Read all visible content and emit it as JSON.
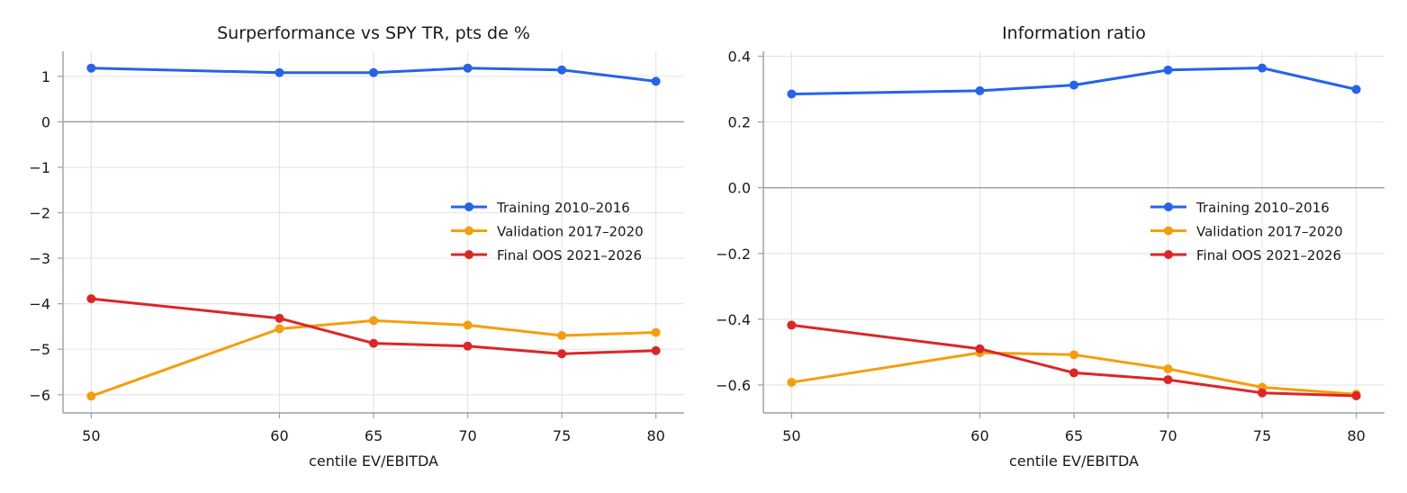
{
  "chart_data": [
    {
      "type": "line",
      "title": "Surperformance vs SPY TR, pts de %",
      "xlabel": "centile EV/EBITDA",
      "ylabel": "",
      "x": [
        50,
        60,
        65,
        70,
        75,
        80
      ],
      "xlim": [
        48.5,
        81.5
      ],
      "ylim": [
        -6.4,
        1.55
      ],
      "xticks": [
        "50",
        "60",
        "65",
        "70",
        "75",
        "80"
      ],
      "yticks": [
        1,
        0,
        -1,
        -2,
        -3,
        -4,
        -5,
        -6
      ],
      "yticklabels": [
        "1",
        "0",
        "−1",
        "−2",
        "−3",
        "−4",
        "−5",
        "−6"
      ],
      "grid": true,
      "zero_line": true,
      "legend_position": "center-right",
      "series": [
        {
          "name": "Training 2010–2016",
          "color": "#2563eb",
          "values": [
            1.18,
            1.08,
            1.08,
            1.18,
            1.14,
            0.89
          ]
        },
        {
          "name": "Validation 2017–2020",
          "color": "#f59e0b",
          "values": [
            -6.03,
            -4.55,
            -4.37,
            -4.47,
            -4.7,
            -4.63
          ]
        },
        {
          "name": "Final OOS 2021–2026",
          "color": "#dc2626",
          "values": [
            -3.89,
            -4.32,
            -4.87,
            -4.93,
            -5.1,
            -5.03
          ]
        }
      ]
    },
    {
      "type": "line",
      "title": "Information ratio",
      "xlabel": "centile EV/EBITDA",
      "ylabel": "",
      "x": [
        50,
        60,
        65,
        70,
        75,
        80
      ],
      "xlim": [
        48.5,
        81.5
      ],
      "ylim": [
        -0.685,
        0.415
      ],
      "xticks": [
        "50",
        "60",
        "65",
        "70",
        "75",
        "80"
      ],
      "yticks": [
        0.4,
        0.2,
        0.0,
        -0.2,
        -0.4,
        -0.6
      ],
      "yticklabels": [
        "0.4",
        "0.2",
        "0.0",
        "−0.2",
        "−0.4",
        "−0.6"
      ],
      "grid": true,
      "zero_line": true,
      "legend_position": "center-right",
      "series": [
        {
          "name": "Training 2010–2016",
          "color": "#2563eb",
          "values": [
            0.285,
            0.295,
            0.312,
            0.358,
            0.364,
            0.299
          ]
        },
        {
          "name": "Validation 2017–2020",
          "color": "#f59e0b",
          "values": [
            -0.592,
            -0.502,
            -0.508,
            -0.551,
            -0.607,
            -0.628
          ]
        },
        {
          "name": "Final OOS 2021–2026",
          "color": "#dc2626",
          "values": [
            -0.418,
            -0.49,
            -0.563,
            -0.584,
            -0.624,
            -0.633
          ]
        }
      ]
    }
  ]
}
